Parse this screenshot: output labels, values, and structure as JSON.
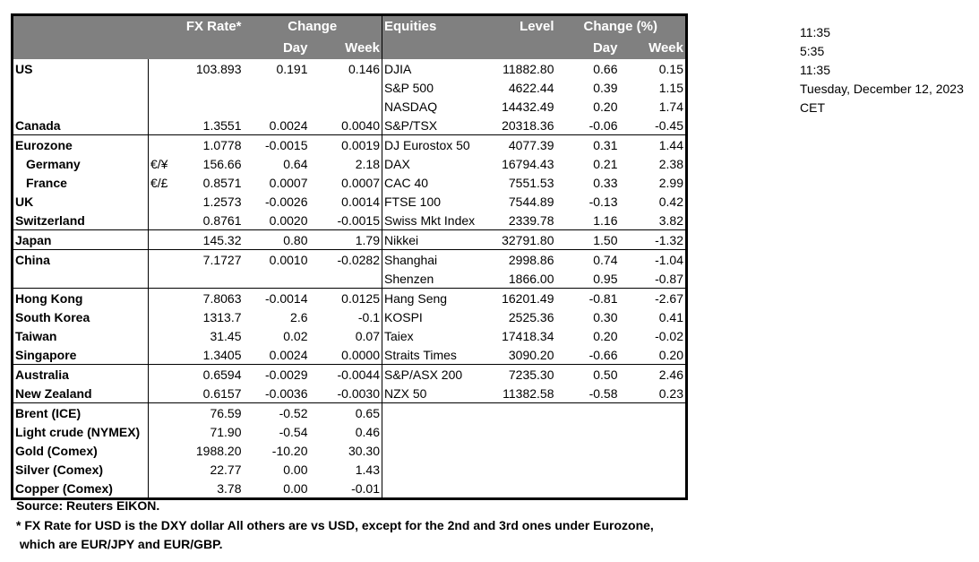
{
  "header": {
    "fx_rate": "FX Rate*",
    "change": "Change",
    "day": "Day",
    "week": "Week",
    "equities": "Equities",
    "level": "Level",
    "change_pct": "Change (%)",
    "eq_day": "Day",
    "eq_week": "Week"
  },
  "rows": [
    {
      "group": 1,
      "label": "US",
      "fx": "103.893",
      "day": "0.191",
      "week": "0.146",
      "eq": "DJIA",
      "level": "11882.80",
      "eq_day": "0.66",
      "eq_week": "0.15"
    },
    {
      "group": 1,
      "label": "",
      "fx": "",
      "day": "",
      "week": "",
      "eq": "S&P 500",
      "level": "4622.44",
      "eq_day": "0.39",
      "eq_week": "1.15"
    },
    {
      "group": 1,
      "label": "",
      "fx": "",
      "day": "",
      "week": "",
      "eq": "NASDAQ",
      "level": "14432.49",
      "eq_day": "0.20",
      "eq_week": "1.74"
    },
    {
      "group": 1,
      "label": "Canada",
      "fx": "1.3551",
      "day": "0.0024",
      "week": "0.0040",
      "eq": "S&P/TSX",
      "level": "20318.36",
      "eq_day": "-0.06",
      "eq_week": "-0.45"
    },
    {
      "group": 2,
      "label": "Eurozone",
      "fx": "1.0778",
      "day": "-0.0015",
      "week": "0.0019",
      "eq": "DJ Eurostox 50",
      "level": "4077.39",
      "eq_day": "0.31",
      "eq_week": "1.44"
    },
    {
      "group": 2,
      "label": "Germany",
      "indent": true,
      "cur": "€/¥",
      "fx": "156.66",
      "day": "0.64",
      "week": "2.18",
      "eq": "DAX",
      "level": "16794.43",
      "eq_day": "0.21",
      "eq_week": "2.38"
    },
    {
      "group": 2,
      "label": "France",
      "indent": true,
      "cur": "€/£",
      "fx": "0.8571",
      "day": "0.0007",
      "week": "0.0007",
      "eq": "CAC 40",
      "level": "7551.53",
      "eq_day": "0.33",
      "eq_week": "2.99"
    },
    {
      "group": 2,
      "label": "UK",
      "fx": "1.2573",
      "day": "-0.0026",
      "week": "0.0014",
      "eq": "FTSE 100",
      "level": "7544.89",
      "eq_day": "-0.13",
      "eq_week": "0.42"
    },
    {
      "group": 2,
      "label": "Switzerland",
      "fx": "0.8761",
      "day": "0.0020",
      "week": "-0.0015",
      "eq": "Swiss Mkt Index",
      "level": "2339.78",
      "eq_day": "1.16",
      "eq_week": "3.82"
    },
    {
      "group": 3,
      "label": "Japan",
      "fx": "145.32",
      "day": "0.80",
      "week": "1.79",
      "eq": "Nikkei",
      "level": "32791.80",
      "eq_day": "1.50",
      "eq_week": "-1.32"
    },
    {
      "group": 4,
      "label": "China",
      "fx": "7.1727",
      "day": "0.0010",
      "week": "-0.0282",
      "eq": "Shanghai",
      "level": "2998.86",
      "eq_day": "0.74",
      "eq_week": "-1.04"
    },
    {
      "group": 4,
      "label": "",
      "fx": "",
      "day": "",
      "week": "",
      "eq": "Shenzen",
      "level": "1866.00",
      "eq_day": "0.95",
      "eq_week": "-0.87"
    },
    {
      "group": 5,
      "label": "Hong Kong",
      "fx": "7.8063",
      "day": "-0.0014",
      "week": "0.0125",
      "eq": "Hang Seng",
      "level": "16201.49",
      "eq_day": "-0.81",
      "eq_week": "-2.67"
    },
    {
      "group": 5,
      "label": "South Korea",
      "fx": "1313.7",
      "day": "2.6",
      "week": "-0.1",
      "eq": "KOSPI",
      "level": "2525.36",
      "eq_day": "0.30",
      "eq_week": "0.41"
    },
    {
      "group": 5,
      "label": "Taiwan",
      "fx": "31.45",
      "day": "0.02",
      "week": "0.07",
      "eq": "Taiex",
      "level": "17418.34",
      "eq_day": "0.20",
      "eq_week": "-0.02"
    },
    {
      "group": 5,
      "label": "Singapore",
      "fx": "1.3405",
      "day": "0.0024",
      "week": "0.0000",
      "eq": "Straits Times",
      "level": "3090.20",
      "eq_day": "-0.66",
      "eq_week": "0.20"
    },
    {
      "group": 6,
      "label": "Australia",
      "fx": "0.6594",
      "day": "-0.0029",
      "week": "-0.0044",
      "eq": "S&P/ASX  200",
      "level": "7235.30",
      "eq_day": "0.50",
      "eq_week": "2.46"
    },
    {
      "group": 6,
      "label": "New Zealand",
      "fx": "0.6157",
      "day": "-0.0036",
      "week": "-0.0030",
      "eq": "NZX 50",
      "level": "11382.58",
      "eq_day": "-0.58",
      "eq_week": "0.23"
    },
    {
      "group": 7,
      "label": "Brent (ICE)",
      "fx": "76.59",
      "day": "-0.52",
      "week": "0.65",
      "eq": "",
      "level": "",
      "eq_day": "",
      "eq_week": ""
    },
    {
      "group": 7,
      "label": "Light crude (NYMEX)",
      "fx": "71.90",
      "day": "-0.54",
      "week": "0.46",
      "eq": "",
      "level": "",
      "eq_day": "",
      "eq_week": ""
    },
    {
      "group": 7,
      "label": "Gold (Comex)",
      "fx": "1988.20",
      "day": "-10.20",
      "week": "30.30",
      "eq": "",
      "level": "",
      "eq_day": "",
      "eq_week": ""
    },
    {
      "group": 7,
      "label": "Silver (Comex)",
      "fx": "22.77",
      "day": "0.00",
      "week": "1.43",
      "eq": "",
      "level": "",
      "eq_day": "",
      "eq_week": ""
    },
    {
      "group": 7,
      "label": "Copper (Comex)",
      "fx": "3.78",
      "day": "0.00",
      "week": "-0.01",
      "eq": "",
      "level": "",
      "eq_day": "",
      "eq_week": ""
    }
  ],
  "notes": {
    "source": "Source:  Reuters EIKON.",
    "footnote1": "* FX Rate for USD is the DXY dollar  All others are vs USD, except for the 2nd and 3rd ones under Eurozone,",
    "footnote2": " which are EUR/JPY and EUR/GBP."
  },
  "side": {
    "time1": "11:35",
    "time2": "5:35",
    "time3": "11:35",
    "date": "Tuesday, December 12, 2023",
    "tz": "CET"
  },
  "colors": {
    "header_bg": "#808080",
    "header_text": "#ffffff"
  }
}
